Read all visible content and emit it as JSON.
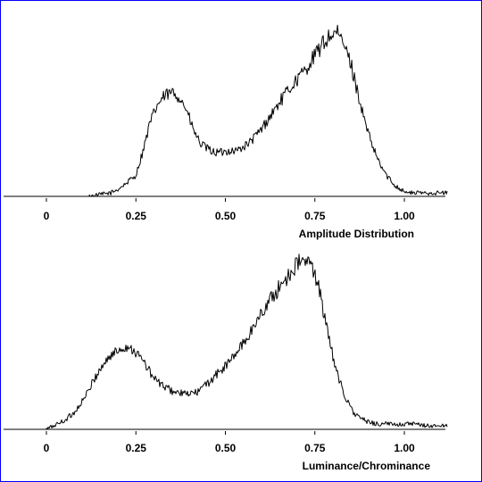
{
  "chart_data": [
    {
      "type": "line",
      "xlabel": "Amplitude Distribution",
      "xlim": [
        -0.12,
        1.12
      ],
      "ylim": [
        0,
        1.0
      ],
      "xticks": [
        0,
        0.25,
        0.5,
        0.75,
        1.0
      ],
      "xtick_labels": [
        "0",
        "0.25",
        "0.50",
        "0.75",
        "1.00"
      ],
      "grid": false,
      "series": [
        {
          "x": [
            0.12,
            0.15,
            0.18,
            0.2,
            0.22,
            0.25,
            0.27,
            0.29,
            0.31,
            0.33,
            0.35,
            0.37,
            0.39,
            0.41,
            0.43,
            0.45,
            0.47,
            0.49,
            0.51,
            0.53,
            0.55,
            0.57,
            0.6,
            0.63,
            0.66,
            0.69,
            0.72,
            0.75,
            0.77,
            0.79,
            0.81,
            0.83,
            0.85,
            0.87,
            0.89,
            0.91,
            0.93,
            0.95,
            0.97,
            0.99,
            1.01,
            1.04,
            1.08,
            1.12
          ],
          "y": [
            0.0,
            0.01,
            0.02,
            0.04,
            0.07,
            0.12,
            0.26,
            0.42,
            0.52,
            0.57,
            0.59,
            0.57,
            0.5,
            0.38,
            0.3,
            0.27,
            0.25,
            0.25,
            0.26,
            0.26,
            0.28,
            0.31,
            0.38,
            0.47,
            0.56,
            0.64,
            0.71,
            0.8,
            0.86,
            0.91,
            0.93,
            0.87,
            0.76,
            0.59,
            0.42,
            0.29,
            0.19,
            0.12,
            0.07,
            0.04,
            0.02,
            0.02,
            0.02,
            0.02
          ]
        }
      ]
    },
    {
      "type": "line",
      "xlabel": "Luminance/Chrominance",
      "xlim": [
        -0.12,
        1.12
      ],
      "ylim": [
        0,
        1.0
      ],
      "xticks": [
        0,
        0.25,
        0.5,
        0.75,
        1.0
      ],
      "xtick_labels": [
        "0",
        "0.25",
        "0.50",
        "0.75",
        "1.00"
      ],
      "grid": false,
      "series": [
        {
          "x": [
            0.0,
            0.02,
            0.05,
            0.08,
            0.11,
            0.14,
            0.17,
            0.2,
            0.22,
            0.24,
            0.27,
            0.3,
            0.33,
            0.36,
            0.39,
            0.42,
            0.45,
            0.48,
            0.51,
            0.54,
            0.57,
            0.6,
            0.63,
            0.66,
            0.68,
            0.7,
            0.72,
            0.74,
            0.76,
            0.78,
            0.8,
            0.82,
            0.84,
            0.86,
            0.88,
            0.9,
            0.93,
            0.97,
            1.02,
            1.07,
            1.12
          ],
          "y": [
            0.0,
            0.02,
            0.05,
            0.1,
            0.19,
            0.31,
            0.4,
            0.45,
            0.47,
            0.46,
            0.39,
            0.29,
            0.24,
            0.21,
            0.2,
            0.21,
            0.26,
            0.32,
            0.38,
            0.46,
            0.55,
            0.66,
            0.75,
            0.83,
            0.89,
            0.94,
            0.96,
            0.93,
            0.83,
            0.6,
            0.42,
            0.27,
            0.16,
            0.09,
            0.06,
            0.04,
            0.03,
            0.03,
            0.03,
            0.02,
            0.02
          ]
        }
      ]
    }
  ],
  "colors": {
    "border": "#0000ff",
    "line": "#000000",
    "background": "#ffffff"
  }
}
